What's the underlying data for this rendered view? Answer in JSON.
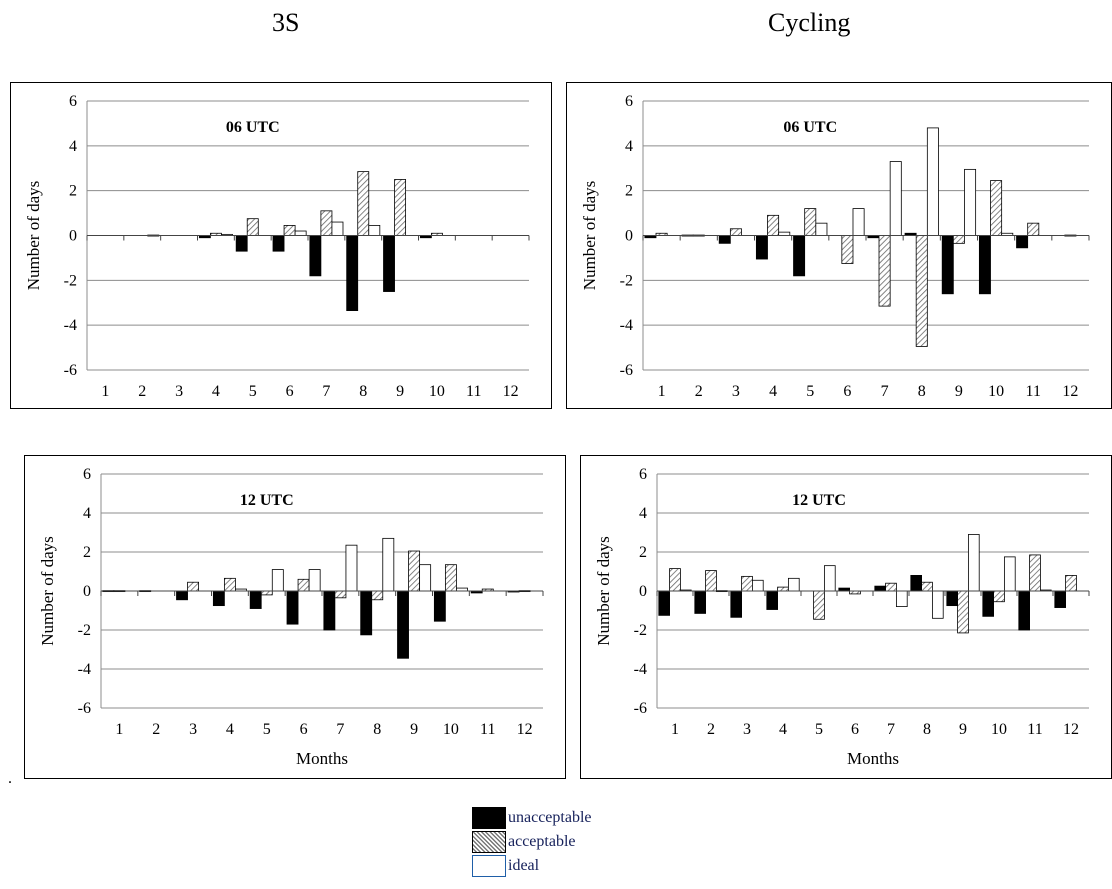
{
  "titles": {
    "left": "3S",
    "right": "Cycling"
  },
  "legend": [
    {
      "key": "unacceptable",
      "label": "unacceptable",
      "fill": "#000000"
    },
    {
      "key": "acceptable",
      "label": "acceptable",
      "fill": "hatched"
    },
    {
      "key": "ideal",
      "label": "ideal",
      "fill": "#ffffff"
    }
  ],
  "dot": ".",
  "chart_data": [
    {
      "type": "bar",
      "column": "3S",
      "title": "06 UTC",
      "ylabel": "Number of days",
      "xlabel": "",
      "ylim": [
        -6,
        6
      ],
      "yticks": [
        -6,
        -4,
        -2,
        0,
        2,
        4,
        6
      ],
      "categories": [
        "1",
        "2",
        "3",
        "4",
        "5",
        "6",
        "7",
        "8",
        "9",
        "10",
        "11",
        "12"
      ],
      "series": [
        {
          "name": "unacceptable",
          "values": [
            0,
            0,
            0,
            -0.1,
            -0.7,
            -0.7,
            -1.8,
            -3.35,
            -2.5,
            -0.1,
            0,
            0
          ]
        },
        {
          "name": "acceptable",
          "values": [
            0,
            0,
            0,
            0.1,
            0.75,
            0.45,
            1.1,
            2.85,
            2.5,
            0.1,
            0,
            0
          ]
        },
        {
          "name": "ideal",
          "values": [
            0,
            0.02,
            0,
            0.05,
            0,
            0.2,
            0.6,
            0.45,
            0,
            0,
            0,
            0
          ]
        }
      ]
    },
    {
      "type": "bar",
      "column": "Cycling",
      "title": "06 UTC",
      "ylabel": "Number of days",
      "xlabel": "",
      "ylim": [
        -6,
        6
      ],
      "yticks": [
        -6,
        -4,
        -2,
        0,
        2,
        4,
        6
      ],
      "categories": [
        "1",
        "2",
        "3",
        "4",
        "5",
        "6",
        "7",
        "8",
        "9",
        "10",
        "11",
        "12"
      ],
      "series": [
        {
          "name": "unacceptable",
          "values": [
            -0.1,
            0.02,
            -0.35,
            -1.05,
            -1.8,
            0,
            -0.1,
            0.1,
            -2.6,
            -2.6,
            -0.55,
            0
          ]
        },
        {
          "name": "acceptable",
          "values": [
            0.1,
            0.02,
            0.3,
            0.9,
            1.2,
            -1.25,
            -3.15,
            -4.95,
            -0.35,
            2.45,
            0.55,
            0.02
          ]
        },
        {
          "name": "ideal",
          "values": [
            0,
            0,
            0,
            0.15,
            0.55,
            1.2,
            3.3,
            4.8,
            2.95,
            0.1,
            0,
            0
          ]
        }
      ]
    },
    {
      "type": "bar",
      "column": "3S",
      "title": "12 UTC",
      "ylabel": "Number of days",
      "xlabel": "Months",
      "ylim": [
        -6,
        6
      ],
      "yticks": [
        -6,
        -4,
        -2,
        0,
        2,
        4,
        6
      ],
      "categories": [
        "1",
        "2",
        "3",
        "4",
        "5",
        "6",
        "7",
        "8",
        "9",
        "10",
        "11",
        "12"
      ],
      "series": [
        {
          "name": "unacceptable",
          "values": [
            0.02,
            0.02,
            -0.45,
            -0.75,
            -0.9,
            -1.7,
            -2.0,
            -2.25,
            -3.45,
            -1.55,
            -0.1,
            -0.05
          ]
        },
        {
          "name": "acceptable",
          "values": [
            0.02,
            0,
            0.45,
            0.65,
            -0.2,
            0.6,
            -0.35,
            -0.45,
            2.05,
            1.35,
            0.1,
            0.02
          ]
        },
        {
          "name": "ideal",
          "values": [
            0,
            0,
            0,
            0.1,
            1.1,
            1.1,
            2.35,
            2.7,
            1.35,
            0.15,
            0,
            0
          ]
        }
      ]
    },
    {
      "type": "bar",
      "column": "Cycling",
      "title": "12 UTC",
      "ylabel": "Number of days",
      "xlabel": "Months",
      "ylim": [
        -6,
        6
      ],
      "yticks": [
        -6,
        -4,
        -2,
        0,
        2,
        4,
        6
      ],
      "categories": [
        "1",
        "2",
        "3",
        "4",
        "5",
        "6",
        "7",
        "8",
        "9",
        "10",
        "11",
        "12"
      ],
      "series": [
        {
          "name": "unacceptable",
          "values": [
            -1.25,
            -1.15,
            -1.35,
            -0.95,
            0,
            0.15,
            0.25,
            0.8,
            -0.75,
            -1.3,
            -2.0,
            -0.85
          ]
        },
        {
          "name": "acceptable",
          "values": [
            1.15,
            1.05,
            0.75,
            0.2,
            -1.45,
            -0.15,
            0.4,
            0.45,
            -2.15,
            -0.55,
            1.85,
            0.8
          ]
        },
        {
          "name": "ideal",
          "values": [
            0.05,
            0.02,
            0.55,
            0.65,
            1.3,
            0,
            -0.8,
            -1.4,
            2.9,
            1.75,
            0.05,
            0
          ]
        }
      ]
    }
  ]
}
